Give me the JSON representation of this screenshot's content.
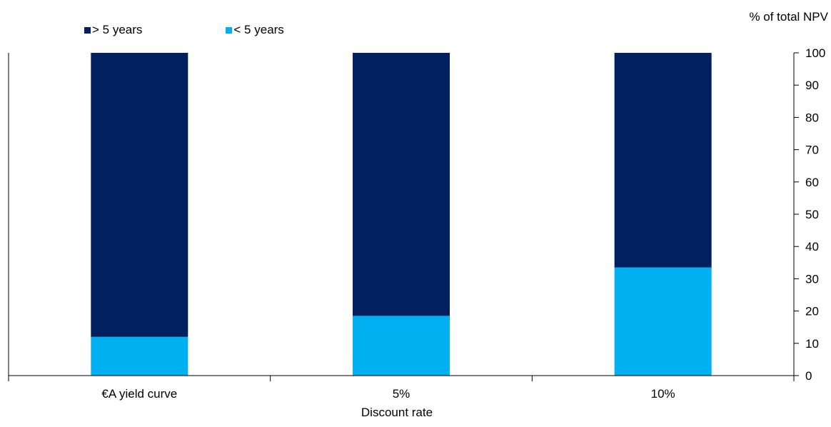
{
  "chart_data": {
    "type": "bar",
    "stacked": true,
    "categories": [
      "€A yield curve",
      "5%",
      "10%"
    ],
    "series": [
      {
        "name": "< 5 years",
        "color": "#00b0f0",
        "values": [
          12,
          18.5,
          33.5
        ]
      },
      {
        "name": "> 5 years",
        "color": "#002060",
        "values": [
          88,
          81.5,
          66.5
        ]
      }
    ],
    "legend_order": [
      1,
      0
    ],
    "legend_position": "top-left",
    "ylabel": "% of total NPV",
    "xlabel": "Discount rate",
    "ylim": [
      0,
      100
    ],
    "yticks": [
      0,
      10,
      20,
      30,
      40,
      50,
      60,
      70,
      80,
      90,
      100
    ],
    "grid": false,
    "y_axis_side": "right"
  }
}
